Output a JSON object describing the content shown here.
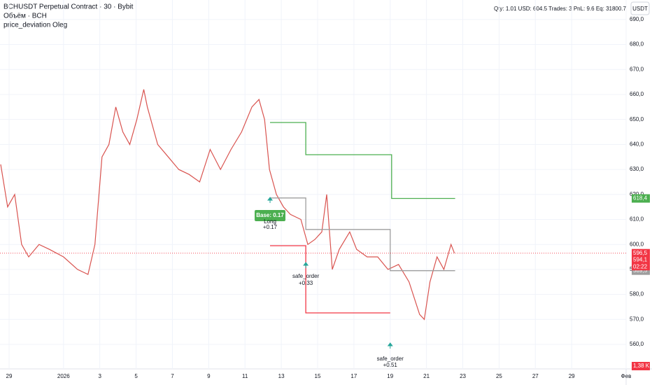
{
  "header": {
    "symbol": "BCHUSDT Perpetual Contract · 30 · Bybit",
    "volume_legend": "Объём · BCH",
    "indicator": "price_deviation Oleg",
    "currency_button": "USDT",
    "stats": "Qty: 1.01  USD: 604.5  Trades: 3  PnL: 9.6  Eq: 31800.7"
  },
  "chart_data": {
    "type": "line",
    "xlim": [
      -0.5,
      34
    ],
    "ylim": [
      550.2,
      697.8
    ],
    "xticks": [
      {
        "value": 0,
        "label": "29"
      },
      {
        "value": 3,
        "label": "2026"
      },
      {
        "value": 5,
        "label": "3"
      },
      {
        "value": 7,
        "label": "5"
      },
      {
        "value": 9,
        "label": "7"
      },
      {
        "value": 11,
        "label": "9"
      },
      {
        "value": 13,
        "label": "11"
      },
      {
        "value": 15,
        "label": "13"
      },
      {
        "value": 17,
        "label": "15"
      },
      {
        "value": 19,
        "label": "17"
      },
      {
        "value": 21,
        "label": "19"
      },
      {
        "value": 23,
        "label": "21"
      },
      {
        "value": 25,
        "label": "23"
      },
      {
        "value": 27,
        "label": "25"
      },
      {
        "value": 29,
        "label": "27"
      },
      {
        "value": 31,
        "label": "29"
      },
      {
        "value": 34,
        "label": "Фев"
      }
    ],
    "yticks": [
      {
        "value": 560,
        "label": "560,0"
      },
      {
        "value": 570,
        "label": "570,0"
      },
      {
        "value": 580,
        "label": "580,0"
      },
      {
        "value": 590,
        "label": "590,0"
      },
      {
        "value": 600,
        "label": "600,0"
      },
      {
        "value": 610,
        "label": "610,0"
      },
      {
        "value": 620,
        "label": "620,0"
      },
      {
        "value": 630,
        "label": "630,0"
      },
      {
        "value": 640,
        "label": "640,0"
      },
      {
        "value": 650,
        "label": "650,0"
      },
      {
        "value": 660,
        "label": "660,0"
      },
      {
        "value": 670,
        "label": "670,0"
      },
      {
        "value": 680,
        "label": "680,0"
      },
      {
        "value": 690,
        "label": "690,0"
      }
    ],
    "grid": true,
    "series": [
      {
        "color": "#d9534f",
        "x": [
          -0.46,
          -0.08,
          0.31,
          0.69,
          1.08,
          1.65,
          2.23,
          3.0,
          3.77,
          4.35,
          4.73,
          5.12,
          5.5,
          5.88,
          6.27,
          6.65,
          7.04,
          7.42,
          7.62,
          8.19,
          8.77,
          9.35,
          9.92,
          10.5,
          11.08,
          11.65,
          12.23,
          12.81,
          13.38,
          13.77,
          14.08,
          14.35,
          14.73,
          15.12,
          15.5,
          16.08,
          16.46,
          16.85,
          17.23,
          17.5,
          17.81,
          18.19,
          18.77,
          19.15,
          19.73,
          20.31,
          20.88,
          21.46,
          22.04,
          22.62,
          22.88,
          23.19,
          23.58,
          23.96,
          24.35,
          24.54
        ],
        "values": [
          632,
          615,
          620,
          600,
          595,
          600,
          598,
          595,
          590,
          588,
          600,
          635,
          640,
          655,
          645,
          640,
          650,
          662,
          655,
          640,
          635,
          630,
          628,
          625,
          638,
          630,
          638,
          645,
          655,
          658,
          650,
          630,
          620,
          615,
          612,
          610,
          600,
          602,
          605,
          620,
          590,
          598,
          605,
          598,
          595,
          595,
          590,
          592,
          585,
          572,
          570,
          585,
          595,
          590,
          600,
          596.5
        ]
      },
      {
        "color": "#4caf50",
        "x": [
          14.38,
          16.35,
          16.35,
          21.08,
          21.08,
          24.58
        ],
        "values": [
          648.8,
          648.8,
          635.9,
          635.9,
          618.4,
          618.4
        ]
      },
      {
        "color": "#f23645",
        "x": [
          14.38,
          16.35,
          16.35,
          21.0
        ],
        "values": [
          599.5,
          599.5,
          572.6,
          572.6
        ]
      },
      {
        "color": "#9e9e9e",
        "x": [
          14.38,
          16.35,
          16.35,
          21.0,
          21.0,
          24.58
        ],
        "values": [
          618.6,
          618.6,
          606,
          606,
          589.5,
          589.5
        ]
      }
    ],
    "price_labels": [
      {
        "value": 618.4,
        "label": "618,4",
        "color": "#4caf50"
      },
      {
        "value": 596.5,
        "label": "596,5",
        "color": "#f23645"
      },
      {
        "value": 594.1,
        "label": "594,1",
        "color": "#f23645"
      },
      {
        "value": 589.5,
        "label": "589,5",
        "color": "#9e9e9e"
      }
    ],
    "timer": "02:22",
    "volume_label": "1,38 K",
    "annotations": [
      "Base: 0.17",
      "Long",
      "+0.17",
      "safe_order",
      "+0.33",
      "safe_order",
      "+0.51"
    ]
  }
}
